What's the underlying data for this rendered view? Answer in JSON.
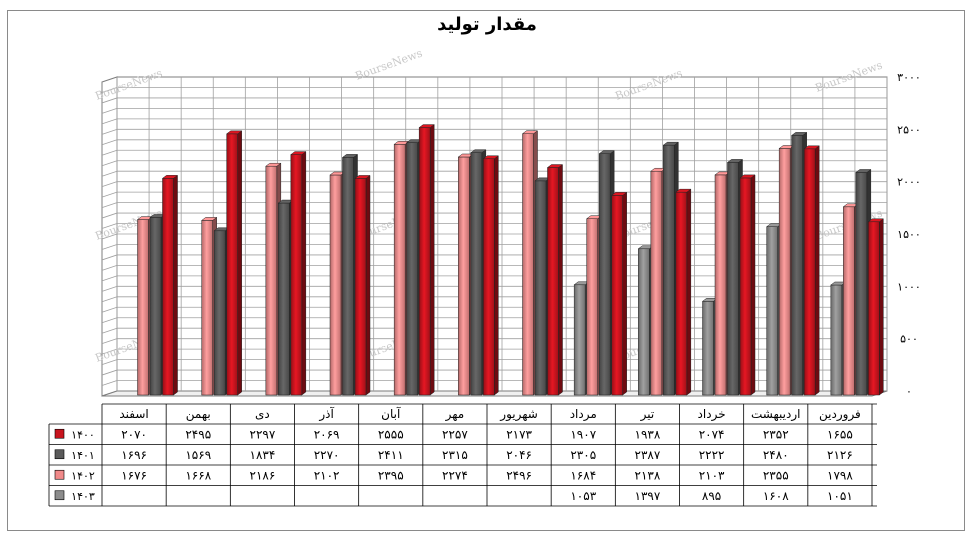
{
  "chart_data": {
    "type": "bar",
    "title": "مقدار تولید",
    "categories": [
      "اسفند",
      "بهمن",
      "دی",
      "آذر",
      "آبان",
      "مهر",
      "شهریور",
      "مرداد",
      "تیر",
      "خرداد",
      "اردیبهشت",
      "فروردین"
    ],
    "series": [
      {
        "name": "۱۴۰۳",
        "color": "#8c8c8c",
        "values": [
          null,
          null,
          null,
          null,
          null,
          null,
          null,
          1053,
          1397,
          895,
          1608,
          1051
        ]
      },
      {
        "name": "۱۴۰۲",
        "color": "#f08a8a",
        "values": [
          1676,
          1668,
          2186,
          2102,
          2395,
          2274,
          2496,
          1684,
          2138,
          2103,
          2355,
          1798
        ]
      },
      {
        "name": "۱۴۰۱",
        "color": "#5a5a5a",
        "values": [
          1696,
          1569,
          1834,
          2270,
          2411,
          2315,
          2046,
          2305,
          2387,
          2222,
          2480,
          2126
        ]
      },
      {
        "name": "۱۴۰۰",
        "color": "#c8141e",
        "values": [
          2070,
          2495,
          2297,
          2069,
          2555,
          2257,
          2173,
          1907,
          1938,
          2074,
          2352,
          1655
        ]
      }
    ],
    "table_rows": [
      {
        "name": "۱۴۰۰",
        "cells": [
          "۲۰۷۰",
          "۲۴۹۵",
          "۲۲۹۷",
          "۲۰۶۹",
          "۲۵۵۵",
          "۲۲۵۷",
          "۲۱۷۳",
          "۱۹۰۷",
          "۱۹۳۸",
          "۲۰۷۴",
          "۲۳۵۲",
          "۱۶۵۵"
        ]
      },
      {
        "name": "۱۴۰۱",
        "cells": [
          "۱۶۹۶",
          "۱۵۶۹",
          "۱۸۳۴",
          "۲۲۷۰",
          "۲۴۱۱",
          "۲۳۱۵",
          "۲۰۴۶",
          "۲۳۰۵",
          "۲۳۸۷",
          "۲۲۲۲",
          "۲۴۸۰",
          "۲۱۲۶"
        ]
      },
      {
        "name": "۱۴۰۲",
        "cells": [
          "۱۶۷۶",
          "۱۶۶۸",
          "۲۱۸۶",
          "۲۱۰۲",
          "۲۳۹۵",
          "۲۲۷۴",
          "۲۴۹۶",
          "۱۶۸۴",
          "۲۱۳۸",
          "۲۱۰۳",
          "۲۳۵۵",
          "۱۷۹۸"
        ]
      },
      {
        "name": "۱۴۰۳",
        "cells": [
          "",
          "",
          "",
          "",
          "",
          "",
          "",
          "۱۰۵۳",
          "۱۳۹۷",
          "۸۹۵",
          "۱۶۰۸",
          "۱۰۵۱"
        ]
      }
    ],
    "y_ticks": [
      {
        "v": 0,
        "label": "۰"
      },
      {
        "v": 500,
        "label": "۵۰۰"
      },
      {
        "v": 1000,
        "label": "۱۰۰۰"
      },
      {
        "v": 1500,
        "label": "۱۵۰۰"
      },
      {
        "v": 2000,
        "label": "۲۰۰۰"
      },
      {
        "v": 2500,
        "label": "۲۵۰۰"
      },
      {
        "v": 3000,
        "label": "۳۰۰۰"
      }
    ],
    "ylim": [
      0,
      3000
    ],
    "grid": true,
    "legend": "table-left"
  },
  "watermark": "BourseNews"
}
